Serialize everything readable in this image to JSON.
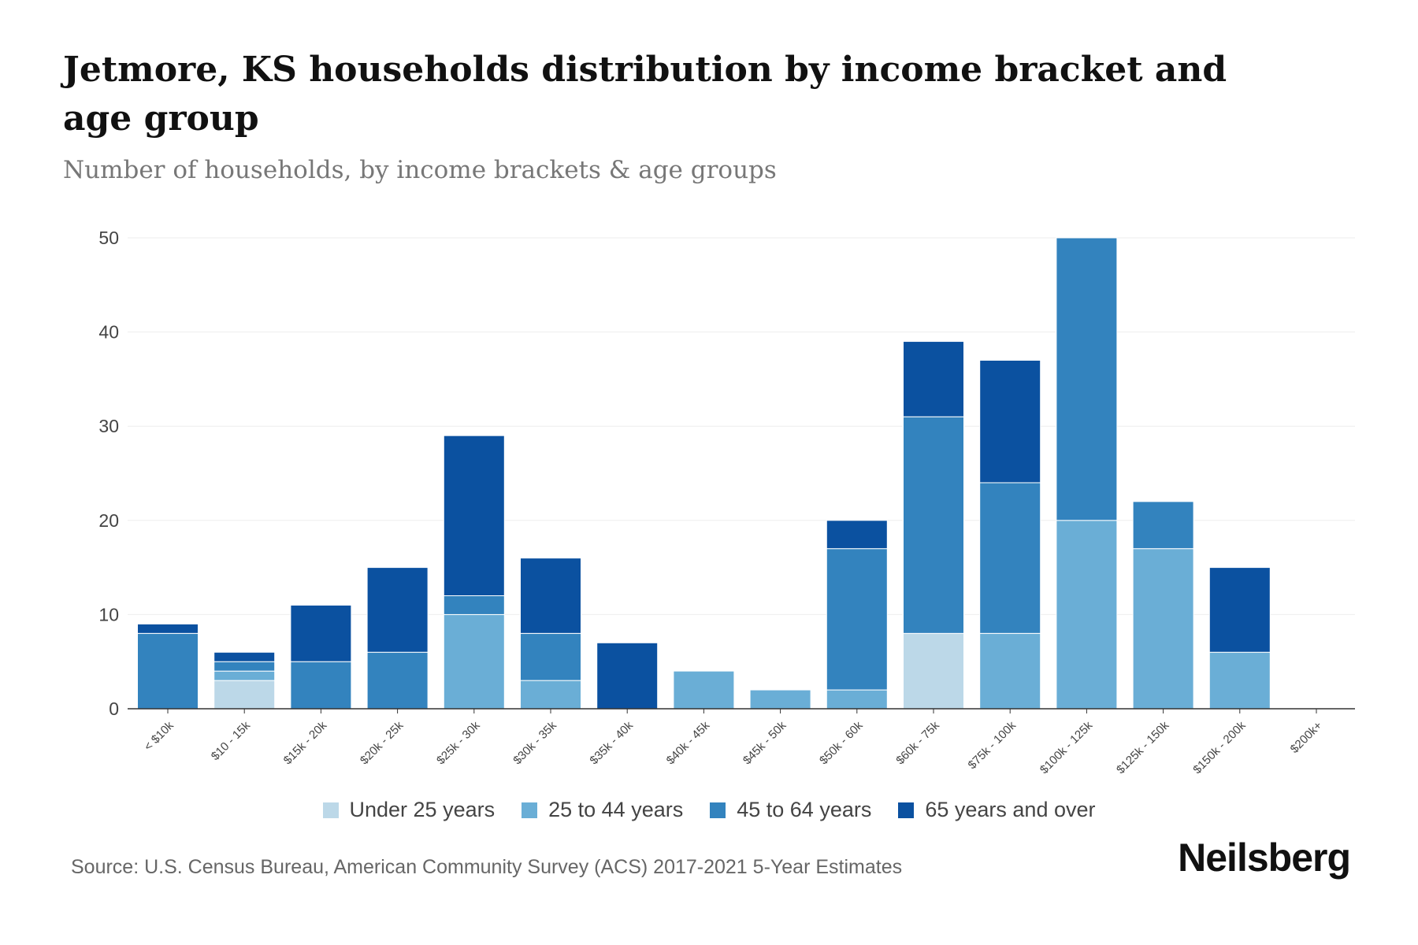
{
  "chart_data": {
    "type": "bar",
    "stacked": true,
    "title": "Jetmore, KS households distribution by income bracket and age group",
    "subtitle": "Number of households, by income brackets & age groups",
    "xlabel": "",
    "ylabel": "",
    "ylim": [
      0,
      50
    ],
    "yticks": [
      0,
      10,
      20,
      30,
      40,
      50
    ],
    "grid": true,
    "legend_position": "bottom",
    "categories": [
      "< $10k",
      "$10 - 15k",
      "$15k - 20k",
      "$20k - 25k",
      "$25k - 30k",
      "$30k - 35k",
      "$35k - 40k",
      "$40k - 45k",
      "$45k - 50k",
      "$50k - 60k",
      "$60k - 75k",
      "$75k - 100k",
      "$100k - 125k",
      "$125k - 150k",
      "$150k - 200k",
      "$200k+"
    ],
    "series": [
      {
        "name": "Under 25 years",
        "color": "#bcd8e8",
        "values": [
          0,
          3,
          0,
          0,
          0,
          0,
          0,
          0,
          0,
          0,
          8,
          0,
          0,
          0,
          0,
          0
        ]
      },
      {
        "name": "25 to 44 years",
        "color": "#6aaed6",
        "values": [
          0,
          1,
          0,
          0,
          10,
          3,
          0,
          4,
          2,
          2,
          0,
          8,
          20,
          17,
          6,
          0
        ]
      },
      {
        "name": "45 to 64 years",
        "color": "#3383be",
        "values": [
          8,
          1,
          5,
          6,
          2,
          5,
          0,
          0,
          0,
          15,
          23,
          16,
          30,
          5,
          0,
          0
        ]
      },
      {
        "name": "65 years and over",
        "color": "#0b51a0",
        "values": [
          1,
          1,
          6,
          9,
          17,
          8,
          7,
          0,
          0,
          3,
          8,
          13,
          0,
          0,
          9,
          0
        ]
      }
    ]
  },
  "source": "Source: U.S. Census Bureau, American Community Survey (ACS) 2017-2021 5-Year Estimates",
  "logo": "Neilsberg"
}
